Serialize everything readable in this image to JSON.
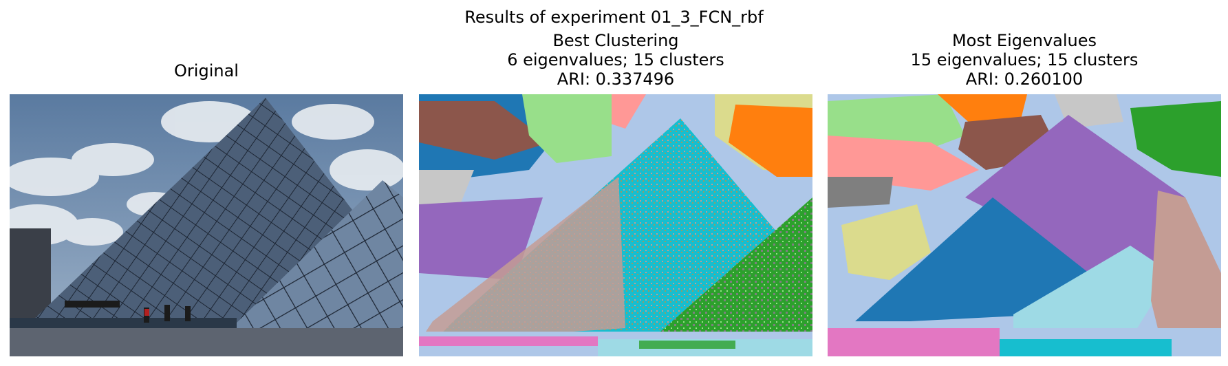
{
  "figure": {
    "title": "Results of experiment 01_3_FCN_rbf"
  },
  "panels": [
    {
      "lines": [
        "Original"
      ]
    },
    {
      "lines": [
        "Best Clustering",
        "6 eigenvalues; 15 clusters",
        "ARI: 0.337496"
      ]
    },
    {
      "lines": [
        "Most Eigenvalues",
        "15 eigenvalues; 15 clusters",
        "ARI: 0.260100"
      ]
    }
  ],
  "palette": {
    "blue": "#1f77b4",
    "light_blue": "#aec7e8",
    "orange": "#ff7f0e",
    "green": "#2ca02c",
    "light_green": "#98df8a",
    "salmon": "#ff9896",
    "purple": "#9467bd",
    "brown": "#8c564b",
    "tan": "#c49c94",
    "pink": "#e377c2",
    "gray": "#7f7f7f",
    "light_gray": "#c7c7c7",
    "olive_light": "#dbdb8d",
    "cyan": "#17becf",
    "light_cyan": "#9edae5"
  }
}
